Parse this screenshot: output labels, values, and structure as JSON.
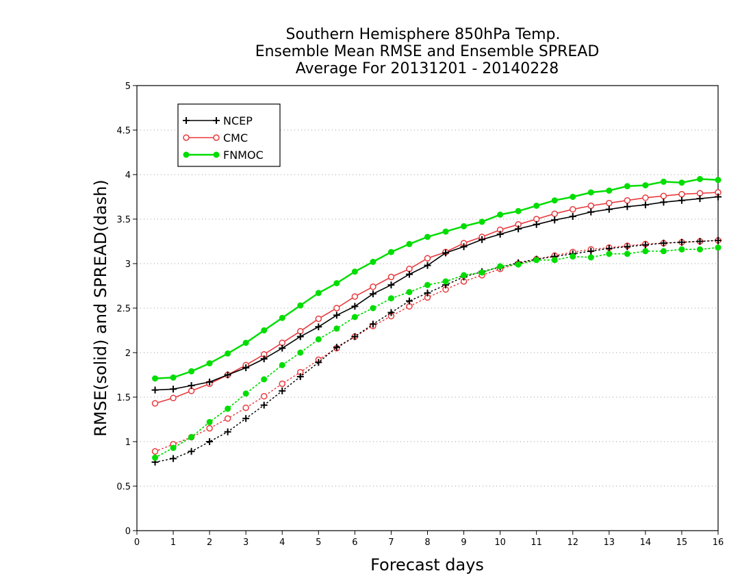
{
  "chart_data": {
    "type": "line",
    "title_lines": [
      "Southern Hemisphere 850hPa Temp.",
      "Ensemble Mean RMSE and Ensemble SPREAD",
      "Average For 20131201 - 20140228"
    ],
    "xlabel": "Forecast days",
    "ylabel": "RMSE(solid) and SPREAD(dash)",
    "xlim": [
      0,
      16
    ],
    "ylim": [
      0,
      5
    ],
    "x_ticks": [
      "0",
      "1",
      "2",
      "3",
      "4",
      "5",
      "6",
      "7",
      "8",
      "9",
      "10",
      "11",
      "12",
      "13",
      "14",
      "15",
      "16"
    ],
    "y_ticks": [
      "0",
      "0.5",
      "1",
      "1.5",
      "2",
      "2.5",
      "3",
      "3.5",
      "4",
      "4.5",
      "5"
    ],
    "grid": "dotted horizontal",
    "legend_position": "top-left",
    "x": [
      0.5,
      1,
      1.5,
      2,
      2.5,
      3,
      3.5,
      4,
      4.5,
      5,
      5.5,
      6,
      6.5,
      7,
      7.5,
      8,
      8.5,
      9,
      9.5,
      10,
      10.5,
      11,
      11.5,
      12,
      12.5,
      13,
      13.5,
      14,
      14.5,
      15,
      15.5,
      16
    ],
    "series": [
      {
        "name": "NCEP",
        "color": "#000000",
        "marker": "plus",
        "rmse": [
          1.58,
          1.59,
          1.63,
          1.67,
          1.75,
          1.83,
          1.93,
          2.05,
          2.18,
          2.29,
          2.42,
          2.52,
          2.66,
          2.76,
          2.88,
          2.98,
          3.12,
          3.19,
          3.27,
          3.33,
          3.39,
          3.44,
          3.49,
          3.53,
          3.58,
          3.61,
          3.64,
          3.66,
          3.69,
          3.71,
          3.73,
          3.75
        ],
        "spread": [
          0.77,
          0.81,
          0.89,
          1.0,
          1.11,
          1.26,
          1.41,
          1.57,
          1.73,
          1.89,
          2.06,
          2.18,
          2.32,
          2.45,
          2.58,
          2.67,
          2.76,
          2.85,
          2.91,
          2.96,
          3.01,
          3.05,
          3.08,
          3.11,
          3.14,
          3.17,
          3.19,
          3.21,
          3.23,
          3.24,
          3.25,
          3.26
        ]
      },
      {
        "name": "CMC",
        "color": "#e8393c",
        "marker": "circle-open",
        "rmse": [
          1.43,
          1.49,
          1.57,
          1.65,
          1.75,
          1.86,
          1.98,
          2.11,
          2.24,
          2.38,
          2.5,
          2.63,
          2.74,
          2.85,
          2.94,
          3.06,
          3.13,
          3.23,
          3.3,
          3.38,
          3.44,
          3.5,
          3.56,
          3.61,
          3.65,
          3.68,
          3.71,
          3.74,
          3.76,
          3.78,
          3.79,
          3.8
        ],
        "spread": [
          0.89,
          0.97,
          1.05,
          1.15,
          1.26,
          1.38,
          1.51,
          1.65,
          1.78,
          1.92,
          2.05,
          2.18,
          2.3,
          2.41,
          2.52,
          2.62,
          2.71,
          2.8,
          2.87,
          2.94,
          3.0,
          3.05,
          3.09,
          3.13,
          3.16,
          3.18,
          3.2,
          3.22,
          3.23,
          3.24,
          3.25,
          3.26
        ]
      },
      {
        "name": "FNMOC",
        "color": "#00dd00",
        "marker": "circle-filled",
        "rmse": [
          1.71,
          1.72,
          1.79,
          1.88,
          1.99,
          2.11,
          2.25,
          2.39,
          2.53,
          2.67,
          2.78,
          2.91,
          3.02,
          3.13,
          3.22,
          3.3,
          3.36,
          3.42,
          3.47,
          3.55,
          3.59,
          3.65,
          3.71,
          3.75,
          3.8,
          3.82,
          3.87,
          3.88,
          3.92,
          3.91,
          3.95,
          3.94
        ],
        "spread": [
          0.82,
          0.93,
          1.05,
          1.22,
          1.37,
          1.54,
          1.7,
          1.86,
          2.0,
          2.15,
          2.27,
          2.4,
          2.5,
          2.61,
          2.68,
          2.76,
          2.8,
          2.87,
          2.9,
          2.97,
          2.99,
          3.04,
          3.04,
          3.08,
          3.07,
          3.11,
          3.11,
          3.14,
          3.14,
          3.16,
          3.16,
          3.18
        ]
      }
    ]
  }
}
